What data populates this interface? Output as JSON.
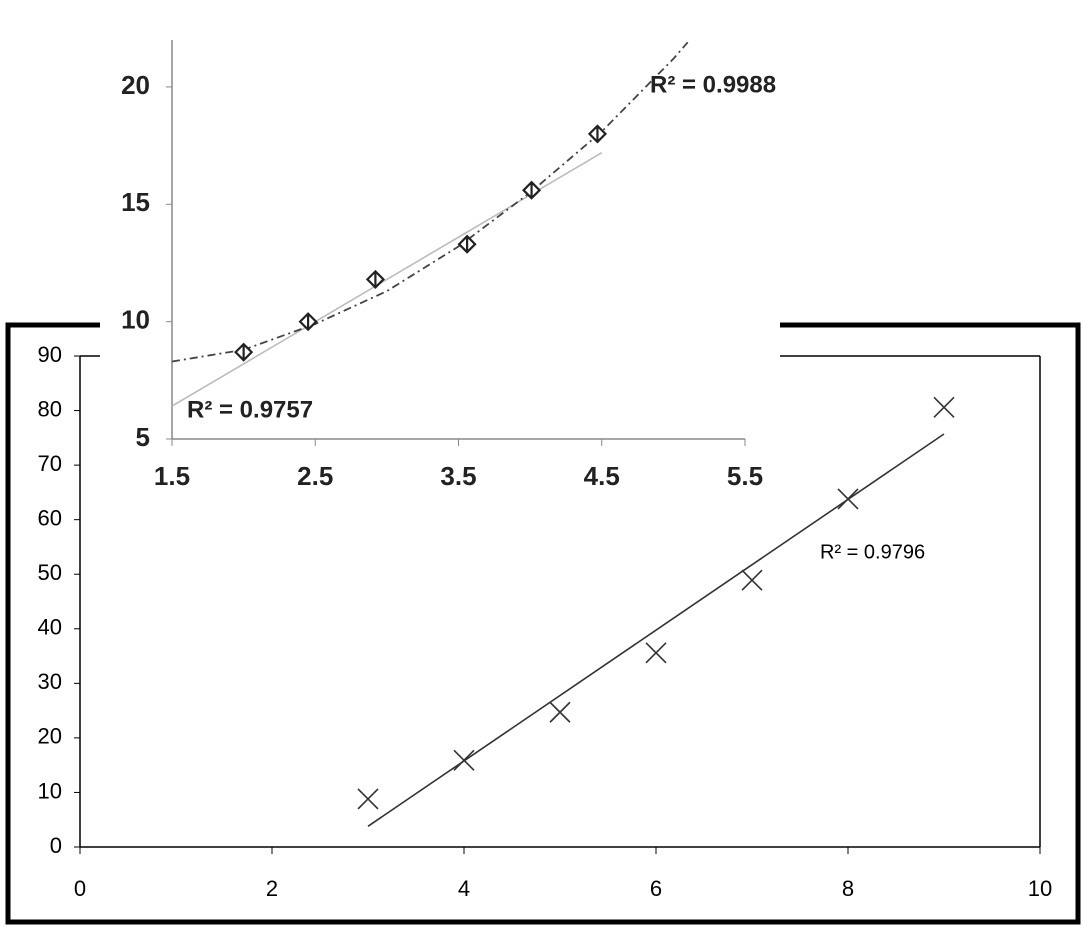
{
  "chart_data": [
    {
      "type": "scatter",
      "marker": "x",
      "color": "#333333",
      "x": [
        3,
        4,
        5,
        6,
        7,
        8,
        9
      ],
      "values": [
        8.8,
        15.9,
        24.7,
        35.6,
        48.9,
        63.8,
        80.6
      ],
      "xlim": [
        0,
        10
      ],
      "xticks": [
        0,
        2,
        4,
        6,
        8,
        10
      ],
      "ylim": [
        0,
        90
      ],
      "yticks": [
        0,
        10,
        20,
        30,
        40,
        50,
        60,
        70,
        80,
        90
      ],
      "grid": false,
      "trendlines": [
        {
          "type": "linear",
          "color": "#333333",
          "x": [
            3,
            9
          ],
          "values": [
            3.8,
            75.7
          ],
          "label": "R² = 0.9796"
        }
      ]
    },
    {
      "type": "scatter",
      "marker": "diamond",
      "color": "#222222",
      "x": [
        2.0,
        2.45,
        2.92,
        3.56,
        4.01,
        4.47
      ],
      "values": [
        8.7,
        10.0,
        11.8,
        13.3,
        15.6,
        18.0
      ],
      "xlim": [
        1.5,
        5.5
      ],
      "xticks": [
        1.5,
        2.5,
        3.5,
        4.5,
        5.5
      ],
      "ylim": [
        5,
        22
      ],
      "yticks": [
        5,
        10,
        15,
        20
      ],
      "grid": false,
      "trendlines": [
        {
          "type": "linear",
          "color": "#bbbbbb",
          "x": [
            1.5,
            4.5
          ],
          "values": [
            6.4,
            17.2
          ],
          "label": "R² = 0.9757"
        },
        {
          "type": "polynomial",
          "color": "#444444",
          "x": [
            1.5,
            2.0,
            2.5,
            3.0,
            3.5,
            4.0,
            4.5,
            5.0,
            5.1
          ],
          "values": [
            8.3,
            8.8,
            9.9,
            11.3,
            13.2,
            15.5,
            18.1,
            21.2,
            21.9
          ],
          "label": "R² = 0.9988"
        }
      ]
    }
  ]
}
